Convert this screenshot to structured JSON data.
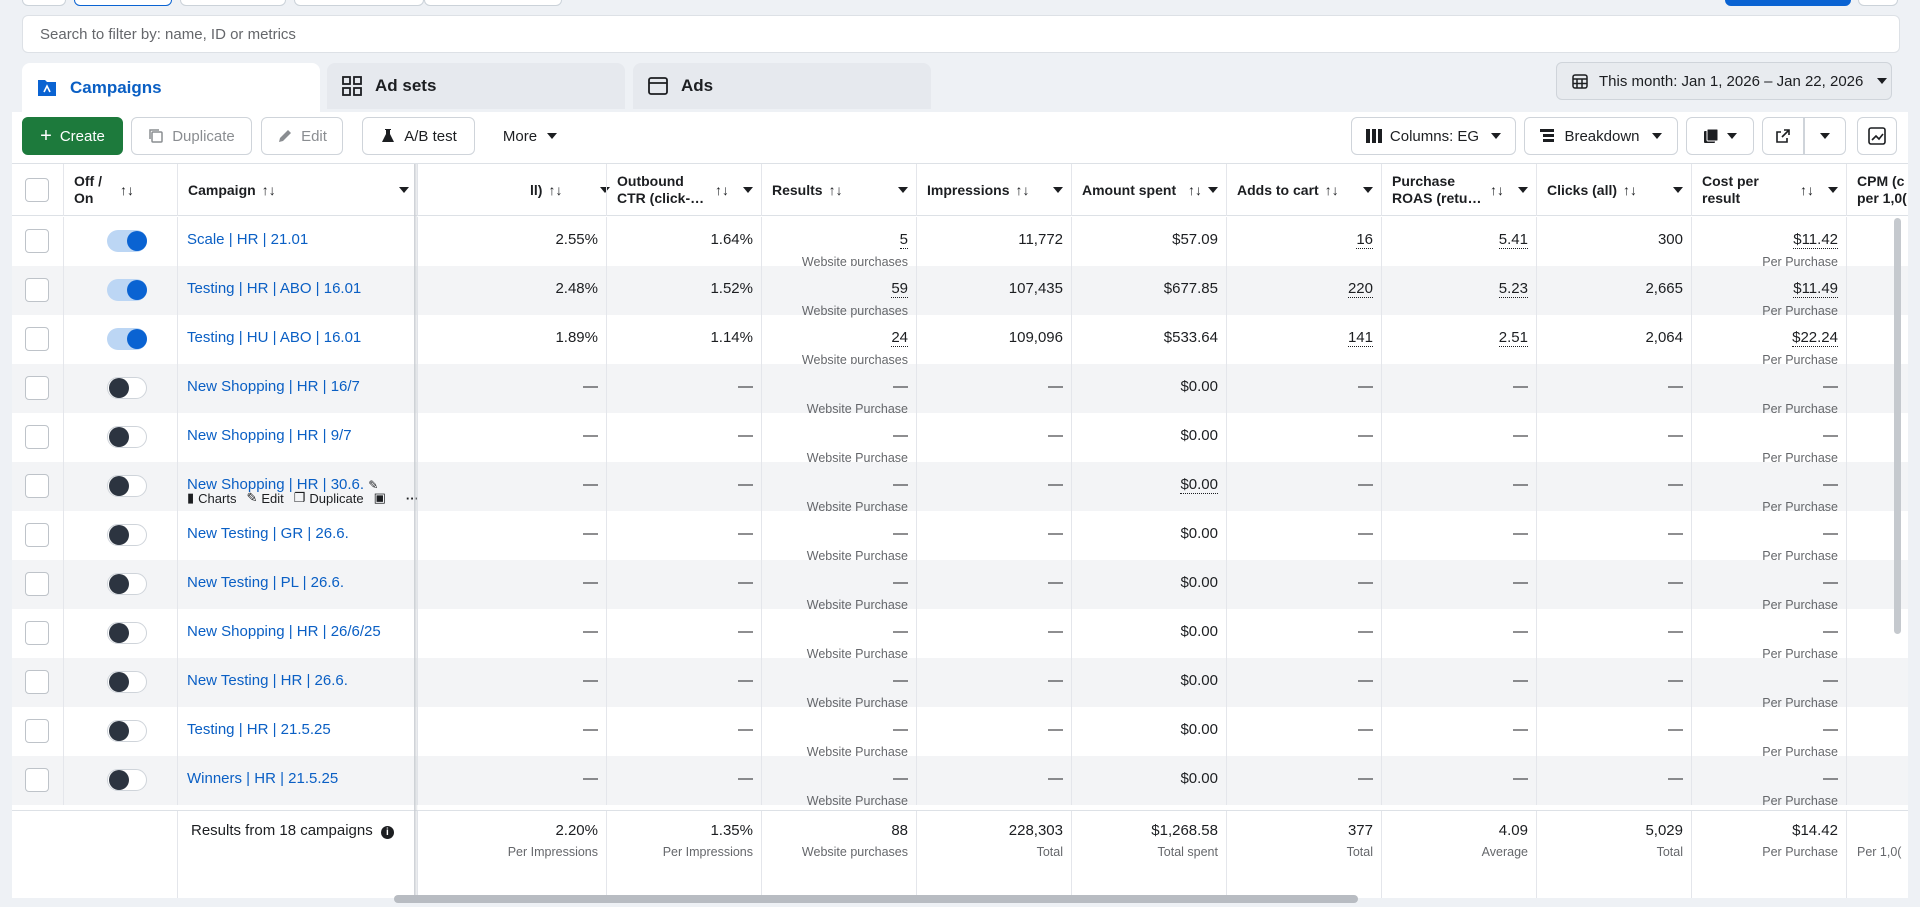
{
  "search": {
    "placeholder": "Search to filter by: name, ID or metrics"
  },
  "tabs": [
    {
      "label": "Campaigns",
      "icon": "campaigns-icon"
    },
    {
      "label": "Ad sets",
      "icon": "adsets-grid-icon"
    },
    {
      "label": "Ads",
      "icon": "ads-window-icon"
    }
  ],
  "date_range": {
    "label": "This month: Jan 1, 2026 – Jan 22, 2026"
  },
  "toolbar": {
    "create": "Create",
    "duplicate": "Duplicate",
    "edit": "Edit",
    "ab_test": "A/B test",
    "more": "More",
    "columns": "Columns: EG",
    "breakdown": "Breakdown"
  },
  "columns": {
    "off_on": "Off / On",
    "campaign": "Campaign",
    "ctr_all": "ll)",
    "outbound_ctr": "Outbound CTR (click-…",
    "results": "Results",
    "impressions": "Impressions",
    "amount_spent": "Amount spent",
    "adds_to_cart": "Adds to cart",
    "purchase_roas": "Purchase ROAS (retu…",
    "clicks_all": "Clicks (all)",
    "cost_per_result": "Cost per result",
    "cpm": "CPM (c per 1,0("
  },
  "rows": [
    {
      "on": true,
      "name": "Scale | HR | 21.01",
      "ctr": "2.55%",
      "out_ctr": "1.64%",
      "results": "5",
      "results_sub": "Website purchases",
      "impr": "11,772",
      "spent": "$57.09",
      "atc": "16",
      "roas": "5.41",
      "clicks": "300",
      "cpr": "$11.42",
      "cpr_sub": "Per Purchase"
    },
    {
      "on": true,
      "name": "Testing | HR | ABO | 16.01",
      "ctr": "2.48%",
      "out_ctr": "1.52%",
      "results": "59",
      "results_sub": "Website purchases",
      "impr": "107,435",
      "spent": "$677.85",
      "atc": "220",
      "roas": "5.23",
      "clicks": "2,665",
      "cpr": "$11.49",
      "cpr_sub": "Per Purchase"
    },
    {
      "on": true,
      "name": "Testing | HU | ABO | 16.01",
      "ctr": "1.89%",
      "out_ctr": "1.14%",
      "results": "24",
      "results_sub": "Website purchases",
      "impr": "109,096",
      "spent": "$533.64",
      "atc": "141",
      "roas": "2.51",
      "clicks": "2,064",
      "cpr": "$22.24",
      "cpr_sub": "Per Purchase"
    },
    {
      "on": false,
      "name": "New Shopping | HR | 16/7",
      "ctr": "—",
      "out_ctr": "—",
      "results": "—",
      "results_sub": "Website Purchase",
      "impr": "—",
      "spent": "$0.00",
      "atc": "—",
      "roas": "—",
      "clicks": "—",
      "cpr": "—",
      "cpr_sub": "Per Purchase"
    },
    {
      "on": false,
      "name": "New Shopping | HR | 9/7",
      "ctr": "—",
      "out_ctr": "—",
      "results": "—",
      "results_sub": "Website Purchase",
      "impr": "—",
      "spent": "$0.00",
      "atc": "—",
      "roas": "—",
      "clicks": "—",
      "cpr": "—",
      "cpr_sub": "Per Purchase"
    },
    {
      "on": false,
      "name": "New Shopping | HR | 30.6.",
      "ctr": "—",
      "out_ctr": "—",
      "results": "—",
      "results_sub": "Website Purchase",
      "impr": "—",
      "spent": "$0.00",
      "atc": "—",
      "roas": "—",
      "clicks": "—",
      "cpr": "—",
      "cpr_sub": "Per Purchase"
    },
    {
      "on": false,
      "name": "New Testing | GR | 26.6.",
      "ctr": "—",
      "out_ctr": "—",
      "results": "—",
      "results_sub": "Website Purchase",
      "impr": "—",
      "spent": "$0.00",
      "atc": "—",
      "roas": "—",
      "clicks": "—",
      "cpr": "—",
      "cpr_sub": "Per Purchase"
    },
    {
      "on": false,
      "name": "New Testing | PL | 26.6.",
      "ctr": "—",
      "out_ctr": "—",
      "results": "—",
      "results_sub": "Website Purchase",
      "impr": "—",
      "spent": "$0.00",
      "atc": "—",
      "roas": "—",
      "clicks": "—",
      "cpr": "—",
      "cpr_sub": "Per Purchase"
    },
    {
      "on": false,
      "name": "New Shopping | HR | 26/6/25",
      "ctr": "—",
      "out_ctr": "—",
      "results": "—",
      "results_sub": "Website Purchase",
      "impr": "—",
      "spent": "$0.00",
      "atc": "—",
      "roas": "—",
      "clicks": "—",
      "cpr": "—",
      "cpr_sub": "Per Purchase"
    },
    {
      "on": false,
      "name": "New Testing | HR | 26.6.",
      "ctr": "—",
      "out_ctr": "—",
      "results": "—",
      "results_sub": "Website Purchase",
      "impr": "—",
      "spent": "$0.00",
      "atc": "—",
      "roas": "—",
      "clicks": "—",
      "cpr": "—",
      "cpr_sub": "Per Purchase"
    },
    {
      "on": false,
      "name": "Testing | HR | 21.5.25",
      "ctr": "—",
      "out_ctr": "—",
      "results": "—",
      "results_sub": "Website Purchase",
      "impr": "—",
      "spent": "$0.00",
      "atc": "—",
      "roas": "—",
      "clicks": "—",
      "cpr": "—",
      "cpr_sub": "Per Purchase"
    },
    {
      "on": false,
      "name": "Winners | HR | 21.5.25",
      "ctr": "—",
      "out_ctr": "—",
      "results": "—",
      "results_sub": "Website Purchase",
      "impr": "—",
      "spent": "$0.00",
      "atc": "—",
      "roas": "—",
      "clicks": "—",
      "cpr": "—",
      "cpr_sub": "Per Purchase"
    }
  ],
  "hover_actions": {
    "charts": "Charts",
    "edit": "Edit",
    "duplicate": "Duplicate"
  },
  "totals": {
    "label": "Results from 18 campaigns",
    "ctr": "2.20%",
    "ctr_sub": "Per Impressions",
    "out_ctr": "1.35%",
    "out_ctr_sub": "Per Impressions",
    "results": "88",
    "results_sub": "Website purchases",
    "impr": "228,303",
    "impr_sub": "Total",
    "spent": "$1,268.58",
    "spent_sub": "Total spent",
    "atc": "377",
    "atc_sub": "Total",
    "roas": "4.09",
    "roas_sub": "Average",
    "clicks": "5,029",
    "clicks_sub": "Total",
    "cpr": "$14.42",
    "cpr_sub": "Per Purchase",
    "cpm_sub": "Per 1,0("
  },
  "colors": {
    "accent": "#0a63d2",
    "create": "#1d7a3c",
    "link": "#0a5fc4"
  }
}
